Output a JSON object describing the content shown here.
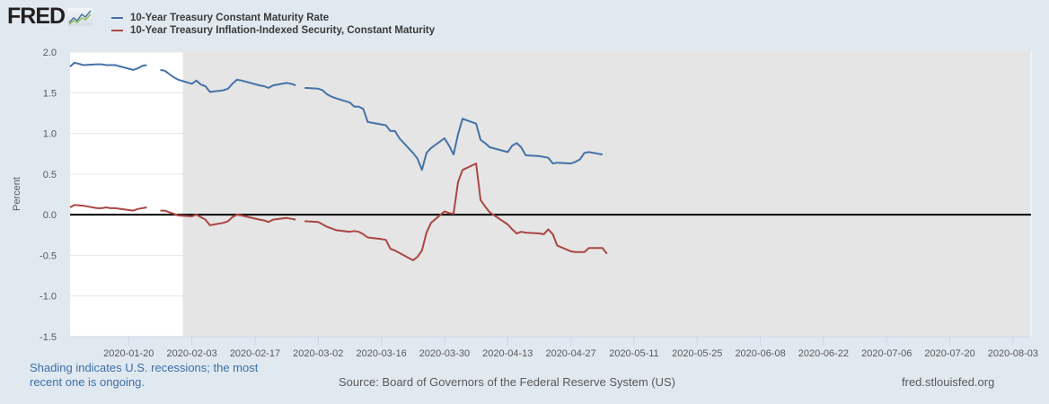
{
  "branding": {
    "logo_text": "FRED",
    "logo_icon": "chart-line-icon"
  },
  "chart_data": {
    "type": "line",
    "title": "",
    "xlabel": "",
    "ylabel": "Percent",
    "ylim": [
      -1.5,
      2.0
    ],
    "xlim": [
      "2020-01-07",
      "2020-08-07"
    ],
    "yticks": [
      -1.5,
      -1.0,
      -0.5,
      0.0,
      0.5,
      1.0,
      1.5,
      2.0
    ],
    "ytick_labels": [
      "-1.5",
      "-1.0",
      "-0.5",
      "0.0",
      "0.5",
      "1.0",
      "1.5",
      "2.0"
    ],
    "xticks": [
      "2020-01-20",
      "2020-02-03",
      "2020-02-17",
      "2020-03-02",
      "2020-03-16",
      "2020-03-30",
      "2020-04-13",
      "2020-04-27",
      "2020-05-11",
      "2020-05-25",
      "2020-06-08",
      "2020-06-22",
      "2020-07-06",
      "2020-07-20",
      "2020-08-03"
    ],
    "grid": true,
    "zero_line": true,
    "recession_shading": {
      "start": "2020-02-01",
      "end": "2020-08-07",
      "color": "#e5e5e5"
    },
    "legend_position": "top-left",
    "series": [
      {
        "name": "10-Year Treasury Constant Maturity Rate",
        "color": "#4572a7",
        "segments": [
          [
            [
              "2020-01-07",
              1.82
            ],
            [
              "2020-01-08",
              1.87
            ],
            [
              "2020-01-10",
              1.84
            ],
            [
              "2020-01-13",
              1.85
            ],
            [
              "2020-01-14",
              1.85
            ],
            [
              "2020-01-15",
              1.84
            ],
            [
              "2020-01-16",
              1.84
            ],
            [
              "2020-01-17",
              1.84
            ],
            [
              "2020-01-21",
              1.78
            ],
            [
              "2020-01-22",
              1.8
            ],
            [
              "2020-01-23",
              1.83
            ],
            [
              "2020-01-24",
              1.84
            ]
          ],
          [
            [
              "2020-01-27",
              1.78
            ],
            [
              "2020-01-28",
              1.77
            ],
            [
              "2020-01-29",
              1.73
            ],
            [
              "2020-01-30",
              1.69
            ],
            [
              "2020-01-31",
              1.66
            ],
            [
              "2020-02-03",
              1.61
            ],
            [
              "2020-02-04",
              1.65
            ],
            [
              "2020-02-05",
              1.6
            ],
            [
              "2020-02-06",
              1.58
            ],
            [
              "2020-02-07",
              1.51
            ],
            [
              "2020-02-10",
              1.53
            ],
            [
              "2020-02-11",
              1.55
            ],
            [
              "2020-02-12",
              1.61
            ],
            [
              "2020-02-13",
              1.66
            ],
            [
              "2020-02-14",
              1.65
            ],
            [
              "2020-02-18",
              1.59
            ],
            [
              "2020-02-19",
              1.58
            ],
            [
              "2020-02-20",
              1.56
            ],
            [
              "2020-02-21",
              1.59
            ],
            [
              "2020-02-24",
              1.62
            ],
            [
              "2020-02-25",
              1.61
            ],
            [
              "2020-02-26",
              1.59
            ]
          ],
          [
            [
              "2020-02-28",
              1.56
            ],
            [
              "2020-03-02",
              1.55
            ],
            [
              "2020-03-03",
              1.53
            ],
            [
              "2020-03-04",
              1.48
            ],
            [
              "2020-03-05",
              1.45
            ],
            [
              "2020-03-06",
              1.43
            ],
            [
              "2020-03-09",
              1.38
            ],
            [
              "2020-03-10",
              1.33
            ],
            [
              "2020-03-11",
              1.33
            ],
            [
              "2020-03-12",
              1.3
            ],
            [
              "2020-03-13",
              1.14
            ],
            [
              "2020-03-16",
              1.11
            ],
            [
              "2020-03-17",
              1.1
            ],
            [
              "2020-03-18",
              1.03
            ],
            [
              "2020-03-19",
              1.03
            ],
            [
              "2020-03-20",
              0.94
            ],
            [
              "2020-03-23",
              0.76
            ],
            [
              "2020-03-24",
              0.69
            ],
            [
              "2020-03-25",
              0.55
            ],
            [
              "2020-03-26",
              0.76
            ],
            [
              "2020-03-27",
              0.82
            ],
            [
              "2020-03-30",
              0.94
            ],
            [
              "2020-03-31",
              0.85
            ],
            [
              "2020-04-01",
              0.74
            ],
            [
              "2020-04-02",
              0.99
            ],
            [
              "2020-04-03",
              1.18
            ],
            [
              "2020-04-06",
              1.12
            ],
            [
              "2020-04-07",
              0.92
            ],
            [
              "2020-04-08",
              0.88
            ],
            [
              "2020-04-09",
              0.83
            ],
            [
              "2020-04-13",
              0.77
            ],
            [
              "2020-04-14",
              0.85
            ],
            [
              "2020-04-15",
              0.88
            ],
            [
              "2020-04-16",
              0.83
            ],
            [
              "2020-04-17",
              0.73
            ],
            [
              "2020-04-20",
              0.72
            ],
            [
              "2020-04-21",
              0.71
            ],
            [
              "2020-04-22",
              0.7
            ],
            [
              "2020-04-23",
              0.63
            ],
            [
              "2020-04-24",
              0.64
            ],
            [
              "2020-04-27",
              0.63
            ],
            [
              "2020-04-28",
              0.65
            ],
            [
              "2020-04-29",
              0.68
            ],
            [
              "2020-04-30",
              0.76
            ],
            [
              "2020-05-01",
              0.77
            ],
            [
              "2020-05-04",
              0.74
            ]
          ]
        ]
      },
      {
        "name": "10-Year Treasury Inflation-Indexed Security, Constant Maturity",
        "color": "#aa4643",
        "segments": [
          [
            [
              "2020-01-07",
              0.09
            ],
            [
              "2020-01-08",
              0.12
            ],
            [
              "2020-01-10",
              0.11
            ],
            [
              "2020-01-13",
              0.08
            ],
            [
              "2020-01-14",
              0.08
            ],
            [
              "2020-01-15",
              0.09
            ],
            [
              "2020-01-16",
              0.08
            ],
            [
              "2020-01-17",
              0.08
            ],
            [
              "2020-01-21",
              0.05
            ],
            [
              "2020-01-22",
              0.07
            ],
            [
              "2020-01-23",
              0.08
            ],
            [
              "2020-01-24",
              0.09
            ]
          ],
          [
            [
              "2020-01-27",
              0.05
            ],
            [
              "2020-01-28",
              0.05
            ],
            [
              "2020-01-29",
              0.03
            ],
            [
              "2020-01-30",
              0.01
            ],
            [
              "2020-01-31",
              -0.01
            ],
            [
              "2020-02-03",
              -0.02
            ],
            [
              "2020-02-04",
              0.0
            ],
            [
              "2020-02-05",
              -0.03
            ],
            [
              "2020-02-06",
              -0.06
            ],
            [
              "2020-02-07",
              -0.13
            ],
            [
              "2020-02-10",
              -0.1
            ],
            [
              "2020-02-11",
              -0.08
            ],
            [
              "2020-02-12",
              -0.03
            ],
            [
              "2020-02-13",
              0.0
            ],
            [
              "2020-02-14",
              -0.01
            ],
            [
              "2020-02-18",
              -0.06
            ],
            [
              "2020-02-19",
              -0.07
            ],
            [
              "2020-02-20",
              -0.09
            ],
            [
              "2020-02-21",
              -0.06
            ],
            [
              "2020-02-24",
              -0.04
            ],
            [
              "2020-02-25",
              -0.05
            ],
            [
              "2020-02-26",
              -0.06
            ]
          ],
          [
            [
              "2020-02-28",
              -0.08
            ],
            [
              "2020-03-02",
              -0.09
            ],
            [
              "2020-03-03",
              -0.12
            ],
            [
              "2020-03-04",
              -0.15
            ],
            [
              "2020-03-05",
              -0.17
            ],
            [
              "2020-03-06",
              -0.19
            ],
            [
              "2020-03-09",
              -0.21
            ],
            [
              "2020-03-10",
              -0.2
            ],
            [
              "2020-03-11",
              -0.21
            ],
            [
              "2020-03-12",
              -0.24
            ],
            [
              "2020-03-13",
              -0.28
            ],
            [
              "2020-03-16",
              -0.3
            ],
            [
              "2020-03-17",
              -0.31
            ],
            [
              "2020-03-18",
              -0.42
            ],
            [
              "2020-03-19",
              -0.44
            ],
            [
              "2020-03-20",
              -0.47
            ],
            [
              "2020-03-23",
              -0.56
            ],
            [
              "2020-03-24",
              -0.52
            ],
            [
              "2020-03-25",
              -0.44
            ],
            [
              "2020-03-26",
              -0.22
            ],
            [
              "2020-03-27",
              -0.1
            ],
            [
              "2020-03-30",
              0.04
            ],
            [
              "2020-03-31",
              0.02
            ],
            [
              "2020-04-01",
              0.01
            ],
            [
              "2020-04-02",
              0.4
            ],
            [
              "2020-04-03",
              0.55
            ],
            [
              "2020-04-06",
              0.63
            ],
            [
              "2020-04-07",
              0.18
            ],
            [
              "2020-04-08",
              0.1
            ],
            [
              "2020-04-09",
              0.03
            ],
            [
              "2020-04-13",
              -0.12
            ],
            [
              "2020-04-14",
              -0.18
            ],
            [
              "2020-04-15",
              -0.23
            ],
            [
              "2020-04-16",
              -0.21
            ],
            [
              "2020-04-17",
              -0.22
            ],
            [
              "2020-04-20",
              -0.23
            ],
            [
              "2020-04-21",
              -0.24
            ],
            [
              "2020-04-22",
              -0.18
            ],
            [
              "2020-04-23",
              -0.24
            ],
            [
              "2020-04-24",
              -0.38
            ],
            [
              "2020-04-27",
              -0.45
            ],
            [
              "2020-04-28",
              -0.46
            ],
            [
              "2020-04-29",
              -0.46
            ],
            [
              "2020-04-30",
              -0.46
            ],
            [
              "2020-05-01",
              -0.41
            ],
            [
              "2020-05-04",
              -0.41
            ],
            [
              "2020-05-05",
              -0.48
            ]
          ]
        ]
      }
    ]
  },
  "legend": {
    "items": [
      {
        "label": "10-Year Treasury Constant Maturity Rate",
        "color": "#4572a7"
      },
      {
        "label": "10-Year Treasury Inflation-Indexed Security, Constant Maturity",
        "color": "#aa4643"
      }
    ]
  },
  "footer": {
    "note": "Shading indicates U.S. recessions; the most recent one is ongoing.",
    "source": "Source: Board of Governors of the Federal Reserve System (US)",
    "site": "fred.stlouisfed.org"
  }
}
